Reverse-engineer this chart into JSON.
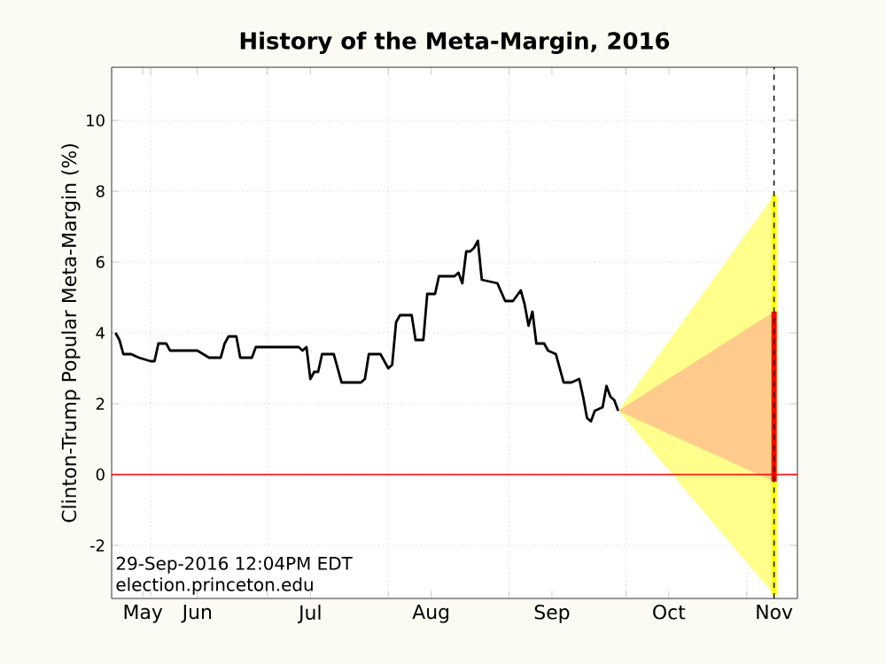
{
  "chart_data": {
    "type": "line",
    "title": "History of the Meta-Margin, 2016",
    "ylabel": "Clinton-Trump Popular Meta-Margin (%)",
    "xlim": [
      "2016-05-22",
      "2016-11-14"
    ],
    "ylim": [
      -3.5,
      11.5
    ],
    "xticks": [
      {
        "value": "2016-05-30",
        "label": "May"
      },
      {
        "value": "2016-06-13",
        "label": "Jun"
      },
      {
        "value": "2016-07-12",
        "label": "Jul"
      },
      {
        "value": "2016-08-12",
        "label": "Aug"
      },
      {
        "value": "2016-09-12",
        "label": "Sep"
      },
      {
        "value": "2016-10-12",
        "label": "Oct"
      },
      {
        "value": "2016-11-08",
        "label": "Nov"
      },
      {
        "value": "2016-06-01",
        "label": null
      },
      {
        "value": "2016-07-01",
        "label": null
      },
      {
        "value": "2016-08-01",
        "label": null
      },
      {
        "value": "2016-09-01",
        "label": null
      },
      {
        "value": "2016-10-01",
        "label": null
      },
      {
        "value": "2016-11-01",
        "label": null
      }
    ],
    "yticks": [
      -2,
      0,
      2,
      4,
      6,
      8,
      10
    ],
    "grid": true,
    "series": [
      {
        "type": "area",
        "color": "#ffff00",
        "x": [
          "2016-09-29",
          "2016-11-08"
        ],
        "values": [
          null,
          null
        ],
        "lower": [
          1.8,
          -3.4
        ],
        "upper": [
          1.8,
          7.9
        ]
      },
      {
        "type": "area",
        "color": "#ff0000",
        "x": [
          "2016-09-29",
          "2016-11-08"
        ],
        "values": [
          null,
          null
        ],
        "lower": [
          1.8,
          -0.2
        ],
        "upper": [
          1.8,
          4.6
        ]
      },
      {
        "type": "line",
        "color": "#ffff00",
        "x": [
          "2016-11-08",
          "2016-11-08"
        ],
        "values": [
          -3.4,
          7.9
        ]
      },
      {
        "type": "line",
        "color": "#ff0000",
        "x": [
          "2016-11-08",
          "2016-11-08"
        ],
        "values": [
          -0.2,
          4.6
        ]
      },
      {
        "color": "#000000",
        "x": [
          "2016-05-23",
          "2016-05-24",
          "2016-05-25",
          "2016-05-27",
          "2016-05-29",
          "2016-06-01",
          "2016-06-02",
          "2016-06-03",
          "2016-06-04",
          "2016-06-05",
          "2016-06-06",
          "2016-06-13",
          "2016-06-16",
          "2016-06-19",
          "2016-06-20",
          "2016-06-21",
          "2016-06-23",
          "2016-06-24",
          "2016-06-27",
          "2016-06-28",
          "2016-07-09",
          "2016-07-10",
          "2016-07-11",
          "2016-07-12",
          "2016-07-13",
          "2016-07-14",
          "2016-07-15",
          "2016-07-18",
          "2016-07-19",
          "2016-07-20",
          "2016-07-25",
          "2016-07-26",
          "2016-07-27",
          "2016-07-30",
          "2016-08-01",
          "2016-08-02",
          "2016-08-03",
          "2016-08-04",
          "2016-08-07",
          "2016-08-08",
          "2016-08-10",
          "2016-08-11",
          "2016-08-13",
          "2016-08-14",
          "2016-08-18",
          "2016-08-19",
          "2016-08-20",
          "2016-08-21",
          "2016-08-22",
          "2016-08-23",
          "2016-08-24",
          "2016-08-25",
          "2016-08-29",
          "2016-08-31",
          "2016-09-02",
          "2016-09-04",
          "2016-09-05",
          "2016-09-06",
          "2016-09-07",
          "2016-09-08",
          "2016-09-10",
          "2016-09-11",
          "2016-09-13",
          "2016-09-15",
          "2016-09-17",
          "2016-09-19",
          "2016-09-20",
          "2016-09-21",
          "2016-09-22",
          "2016-09-23",
          "2016-09-25",
          "2016-09-26",
          "2016-09-27",
          "2016-09-28",
          "2016-09-29"
        ],
        "values": [
          4.0,
          3.8,
          3.4,
          3.4,
          3.3,
          3.2,
          3.2,
          3.7,
          3.7,
          3.7,
          3.5,
          3.5,
          3.3,
          3.3,
          3.7,
          3.9,
          3.9,
          3.3,
          3.3,
          3.6,
          3.6,
          3.5,
          3.6,
          2.7,
          2.9,
          2.9,
          3.4,
          3.4,
          3.0,
          2.6,
          2.6,
          2.7,
          3.4,
          3.4,
          3.0,
          3.1,
          4.3,
          4.5,
          4.5,
          3.8,
          3.8,
          5.1,
          5.1,
          5.6,
          5.6,
          5.7,
          5.4,
          6.3,
          6.3,
          6.4,
          6.6,
          5.5,
          5.4,
          4.9,
          4.9,
          5.2,
          4.8,
          4.2,
          4.6,
          3.7,
          3.7,
          3.5,
          3.4,
          2.6,
          2.6,
          2.7,
          2.2,
          1.6,
          1.5,
          1.8,
          1.9,
          2.5,
          2.2,
          2.1,
          1.8
        ]
      }
    ],
    "ref_lines": [
      {
        "axis": "y",
        "value": 0,
        "color": "#ff0000",
        "line_style": "solid"
      },
      {
        "axis": "x",
        "value": "2016-11-08",
        "color": "#000000",
        "line_style": "dashed"
      }
    ],
    "annotations": [
      "29-Sep-2016 12:04PM EDT",
      "election.princeton.edu"
    ]
  }
}
